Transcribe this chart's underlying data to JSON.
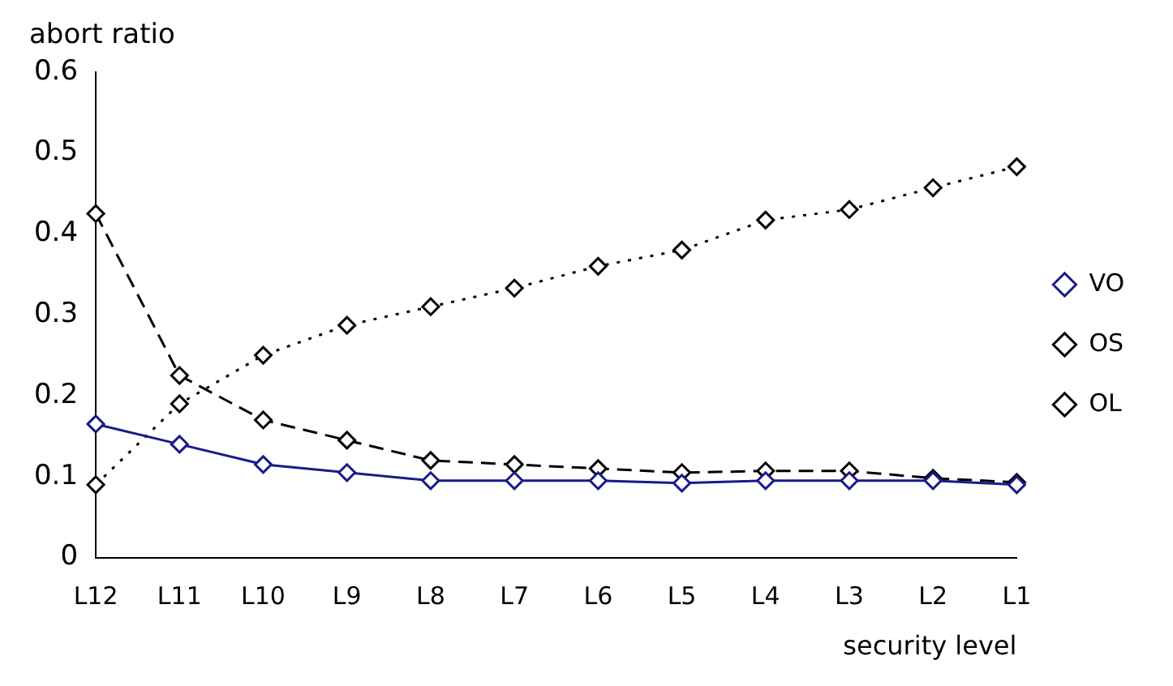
{
  "chart_data": {
    "type": "line",
    "xlabel": "security level",
    "ylabel": "abort ratio",
    "categories": [
      "L12",
      "L11",
      "L10",
      "L9",
      "L8",
      "L7",
      "L6",
      "L5",
      "L4",
      "L3",
      "L2",
      "L1"
    ],
    "ylim": [
      0,
      0.6
    ],
    "yticks": [
      0,
      0.1,
      0.2,
      0.3,
      0.4,
      0.5,
      0.6
    ],
    "grid": false,
    "legend": "right",
    "marker": "diamond",
    "series": [
      {
        "name": "VO",
        "color": "#1a1a8c",
        "line_style": "solid",
        "values": [
          0.165,
          0.14,
          0.115,
          0.105,
          0.095,
          0.095,
          0.095,
          0.092,
          0.095,
          0.095,
          0.095,
          0.09
        ]
      },
      {
        "name": "OS",
        "color": "#000000",
        "line_style": "dashed",
        "values": [
          0.425,
          0.225,
          0.17,
          0.145,
          0.12,
          0.115,
          0.11,
          0.105,
          0.107,
          0.107,
          0.098,
          0.093
        ]
      },
      {
        "name": "OL",
        "color": "#000000",
        "line_style": "dotted",
        "values": [
          0.09,
          0.19,
          0.25,
          0.287,
          0.31,
          0.333,
          0.36,
          0.38,
          0.417,
          0.43,
          0.457,
          0.483
        ]
      }
    ]
  }
}
